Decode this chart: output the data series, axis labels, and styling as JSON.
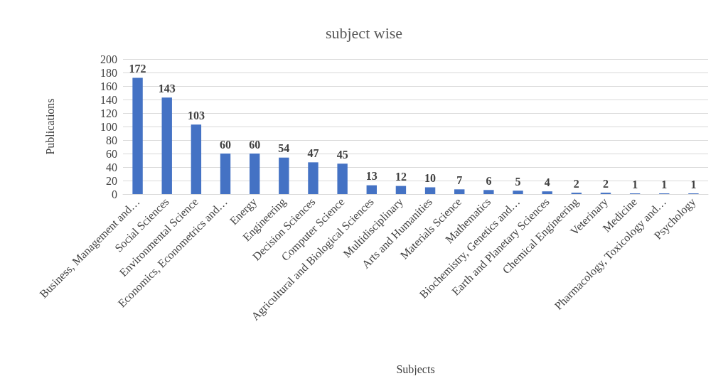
{
  "chart_data": {
    "type": "bar",
    "title": "subject wise",
    "xlabel": "Subjects",
    "ylabel": "Publications",
    "categories": [
      "Business, Management and…",
      "Social Sciences",
      "Environmental Science",
      "Economics, Econometrics and…",
      "Energy",
      "Engineering",
      "Decision Sciences",
      "Computer Science",
      "Agricultural and Biological Sciences",
      "Multidisciplinary",
      "Arts and Humanities",
      "Materials Science",
      "Mathematics",
      "Biochemistry, Genetics and…",
      "Earth and Planetary Sciences",
      "Chemical Engineering",
      "Veterinary",
      "Medicine",
      "Pharmacology, Toxicology and…",
      "Psychology"
    ],
    "values": [
      172,
      143,
      103,
      60,
      60,
      54,
      47,
      45,
      13,
      12,
      10,
      7,
      6,
      5,
      4,
      2,
      2,
      1,
      1,
      1
    ],
    "color": "#4472c4",
    "ylim": [
      0,
      200
    ],
    "yticks": [
      0,
      20,
      40,
      60,
      80,
      100,
      120,
      140,
      160,
      180,
      200
    ],
    "grid": "y",
    "data_labels": true
  }
}
